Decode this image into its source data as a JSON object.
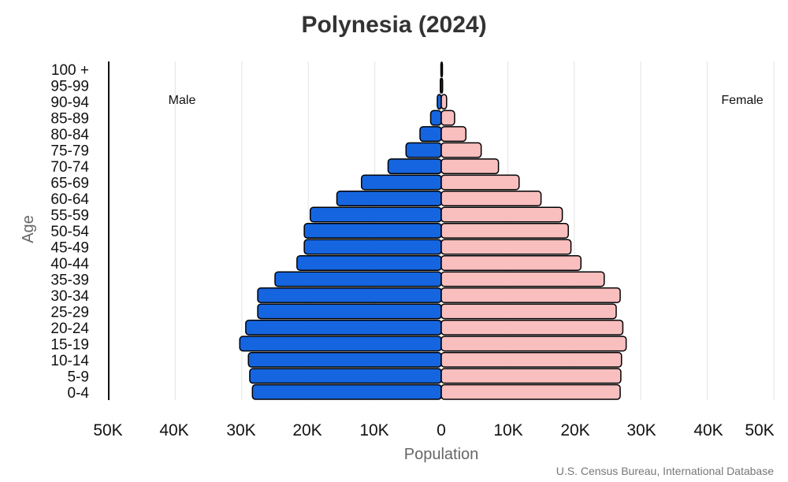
{
  "chart_data": {
    "type": "bar",
    "orientation": "horizontal",
    "title": "Polynesia (2024)",
    "xlabel": "Population",
    "ylabel": "Age",
    "source": "U.S. Census Bureau, International Database",
    "left_label": "Male",
    "right_label": "Female",
    "x_ticks": [
      "50K",
      "40K",
      "30K",
      "20K",
      "10K",
      "0",
      "10K",
      "20K",
      "30K",
      "40K",
      "50K"
    ],
    "xlim": [
      -50000,
      50000
    ],
    "grid": true,
    "categories": [
      "0-4",
      "5-9",
      "10-14",
      "15-19",
      "20-24",
      "25-29",
      "30-34",
      "35-39",
      "40-44",
      "45-49",
      "50-54",
      "55-59",
      "60-64",
      "65-69",
      "70-74",
      "75-79",
      "80-84",
      "85-89",
      "90-94",
      "95-99",
      "100 +"
    ],
    "series": [
      {
        "name": "Male",
        "color": "#1565e0",
        "values": [
          28400,
          28800,
          29000,
          30300,
          29400,
          27600,
          27600,
          25000,
          21700,
          20600,
          20600,
          19700,
          15700,
          12000,
          8000,
          5300,
          3200,
          1600,
          600,
          150,
          60
        ]
      },
      {
        "name": "Female",
        "color": "#f9bebe",
        "values": [
          26900,
          27000,
          27100,
          27800,
          27300,
          26300,
          26900,
          24500,
          21000,
          19500,
          19100,
          18200,
          15000,
          11700,
          8600,
          6000,
          3700,
          2000,
          800,
          200,
          70
        ]
      }
    ]
  }
}
